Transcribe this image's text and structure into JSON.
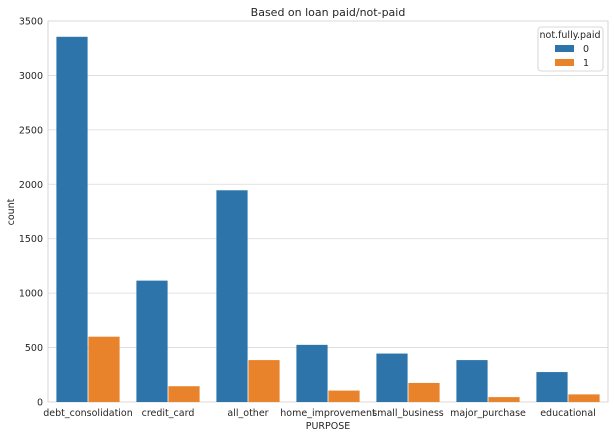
{
  "chart_data": {
    "type": "bar",
    "title": "Based on loan paid/not-paid",
    "xlabel": "PURPOSE",
    "ylabel": "count",
    "categories": [
      "debt_consolidation",
      "credit_card",
      "all_other",
      "home_improvement",
      "small_business",
      "major_purchase",
      "educational"
    ],
    "series": [
      {
        "name": "0",
        "values": [
          3355,
          1115,
          1945,
          525,
          445,
          385,
          275
        ],
        "color": "#2d74aa"
      },
      {
        "name": "1",
        "values": [
          600,
          145,
          385,
          105,
          175,
          45,
          70
        ],
        "color": "#e9832b"
      }
    ],
    "ylim": [
      0,
      3500
    ],
    "yticks": [
      0,
      500,
      1000,
      1500,
      2000,
      2500,
      3000,
      3500
    ],
    "grid": "horizontal",
    "legend": {
      "title": "not.fully.paid",
      "position": "top-right"
    }
  }
}
